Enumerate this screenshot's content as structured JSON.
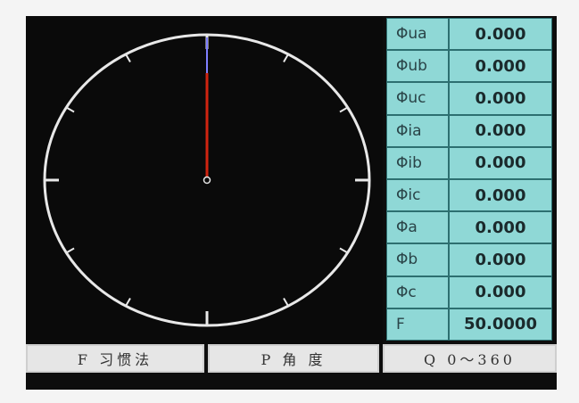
{
  "phasor": {
    "needle_angle_deg": 0,
    "colors": {
      "dial": "#e8e8e8",
      "needle_main": "#d02410",
      "needle_tip": "#8080ff"
    }
  },
  "readings": [
    {
      "label": "Φua",
      "value": "0.000"
    },
    {
      "label": "Φub",
      "value": "0.000"
    },
    {
      "label": "Φuc",
      "value": "0.000"
    },
    {
      "label": "Φia",
      "value": "0.000"
    },
    {
      "label": "Φib",
      "value": "0.000"
    },
    {
      "label": "Φic",
      "value": "0.000"
    },
    {
      "label": "Φa",
      "value": "0.000"
    },
    {
      "label": "Φb",
      "value": "0.000"
    },
    {
      "label": "Φc",
      "value": "0.000"
    },
    {
      "label": "F",
      "value": "50.0000"
    }
  ],
  "softkeys": [
    {
      "label": "F 习惯法"
    },
    {
      "label": "P 角 度"
    },
    {
      "label": "Q 0～360"
    }
  ]
}
